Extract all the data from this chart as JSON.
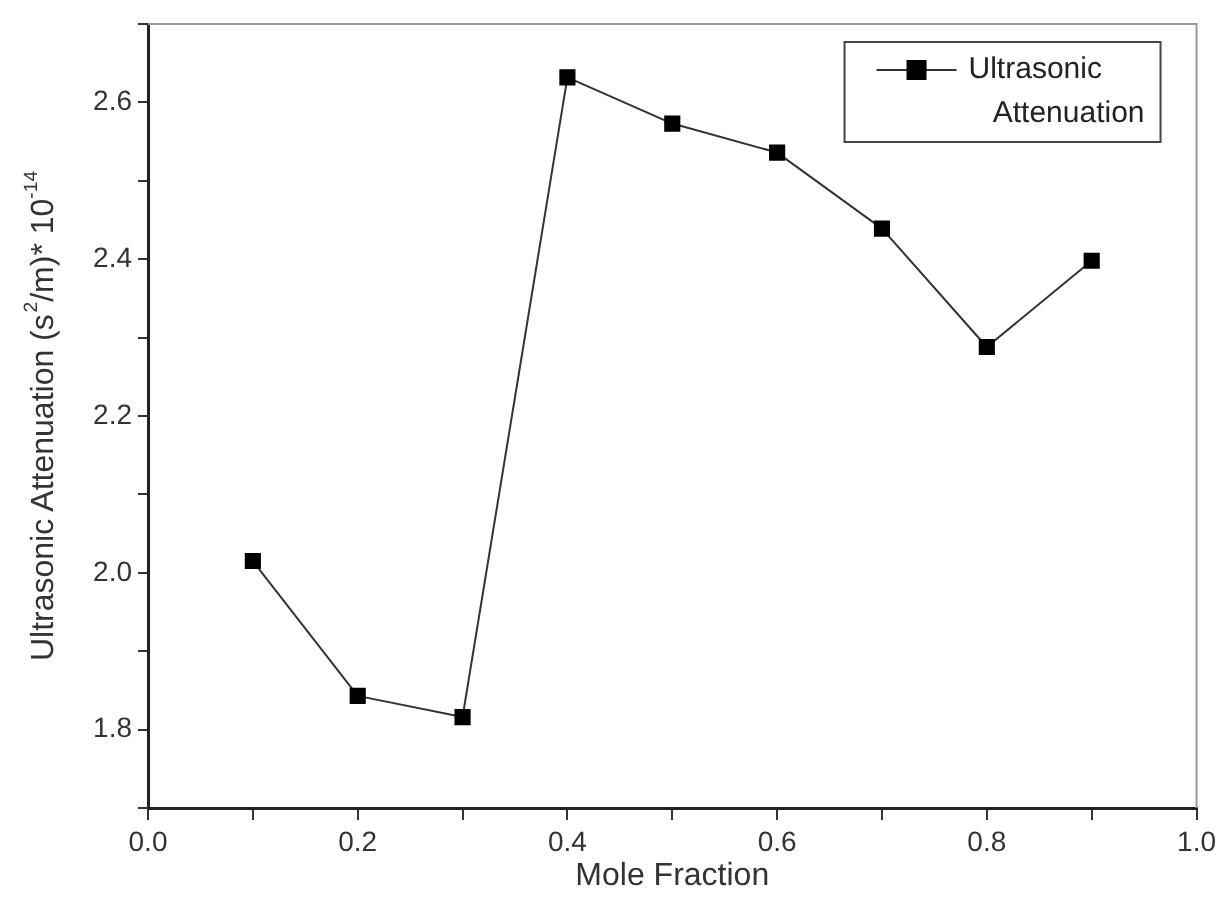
{
  "chart_data": {
    "type": "line",
    "xlabel": "Mole Fraction",
    "ylabel": "Ultrasonic Attenuation (s$^{2}$/m)* 10$^{-14}$",
    "x": [
      0.1,
      0.2,
      0.3,
      0.4,
      0.5,
      0.6,
      0.7,
      0.8,
      0.9
    ],
    "series": [
      {
        "name": "Ultrasonic Attenuation",
        "color": "#000000",
        "values": [
          2.015,
          1.843,
          1.816,
          2.632,
          2.573,
          2.536,
          2.439,
          2.288,
          2.398
        ]
      }
    ],
    "xlim": [
      0,
      1
    ],
    "xticks": [
      {
        "value": 0,
        "label": "0.0"
      },
      {
        "value": 0.1,
        "label": null
      },
      0.2,
      {
        "value": 0.3,
        "label": null
      },
      0.4,
      {
        "value": 0.5,
        "label": null
      },
      0.6,
      {
        "value": 0.7,
        "label": null
      },
      0.8,
      {
        "value": 0.9,
        "label": null
      },
      {
        "value": 1,
        "label": "1.0"
      }
    ],
    "ylim": [
      1.7,
      2.7
    ],
    "yticks": [
      {
        "value": 1.7,
        "label": null
      },
      1.8,
      {
        "value": 1.9,
        "label": null
      },
      {
        "value": 2,
        "label": "2.0"
      },
      {
        "value": 2.1,
        "label": null
      },
      2.2,
      {
        "value": 2.3,
        "label": null
      },
      2.4,
      {
        "value": 2.5,
        "label": null
      },
      2.6,
      {
        "value": 2.7,
        "label": null
      }
    ],
    "grid": false,
    "legend": "top right",
    "marker": "square",
    "line_style": "solid"
  }
}
